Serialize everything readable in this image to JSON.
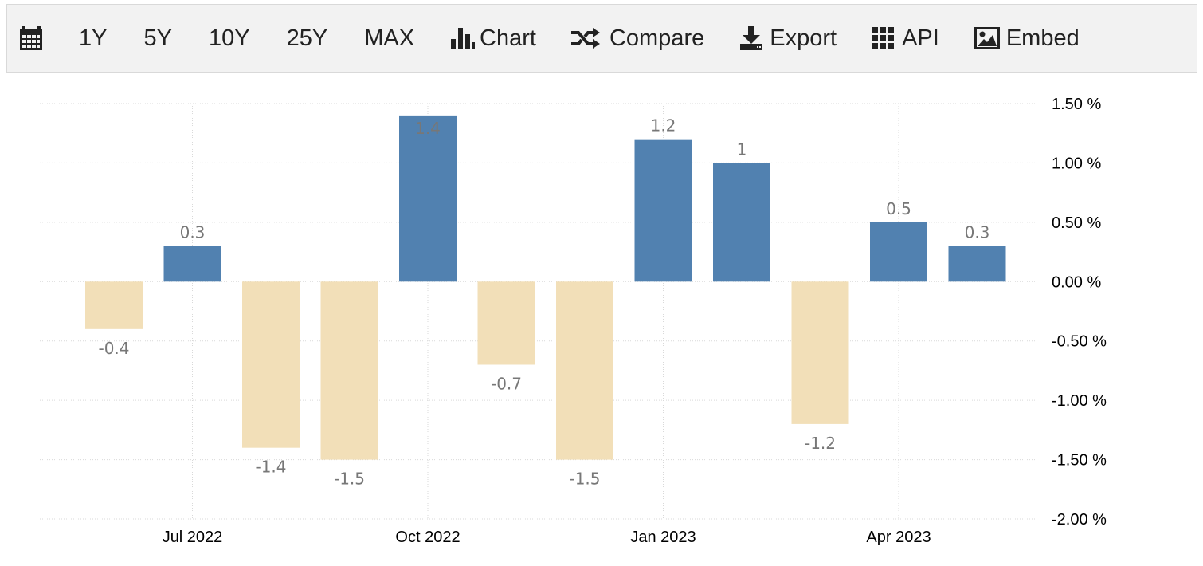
{
  "toolbar": {
    "calendar_icon": "calendar-icon",
    "buttons": [
      "1Y",
      "5Y",
      "10Y",
      "25Y",
      "MAX"
    ],
    "actions": [
      {
        "label": "Chart",
        "icon": "bar-chart-icon"
      },
      {
        "label": "Compare",
        "icon": "shuffle-icon"
      },
      {
        "label": "Export",
        "icon": "download-icon"
      },
      {
        "label": "API",
        "icon": "grid-icon"
      },
      {
        "label": "Embed",
        "icon": "image-icon"
      }
    ]
  },
  "chart_data": {
    "type": "bar",
    "categories": [
      "Jun 2022",
      "Jul 2022",
      "Aug 2022",
      "Sep 2022",
      "Oct 2022",
      "Nov 2022",
      "Dec 2022",
      "Jan 2023",
      "Feb 2023",
      "Mar 2023",
      "Apr 2023",
      "May 2023"
    ],
    "values": [
      -0.4,
      0.3,
      -1.4,
      -1.5,
      1.4,
      -0.7,
      -1.5,
      1.2,
      1,
      -1.2,
      0.5,
      0.3
    ],
    "data_labels": [
      "-0.4",
      "0.3",
      "-1.4",
      "-1.5",
      "1.4",
      "-0.7",
      "-1.5",
      "1.2",
      "1",
      "-1.2",
      "0.5",
      "0.3"
    ],
    "x_tick_labels": [
      "Jul 2022",
      "Oct 2022",
      "Jan 2023",
      "Apr 2023"
    ],
    "y_tick_labels": [
      "1.50 %",
      "1.00 %",
      "0.50 %",
      "0.00 %",
      "-0.50 %",
      "-1.00 %",
      "-1.50 %",
      "-2.00 %"
    ],
    "y_ticks": [
      1.5,
      1.0,
      0.5,
      0.0,
      -0.5,
      -1.0,
      -1.5,
      -2.0
    ],
    "ylim": [
      -2.0,
      1.5
    ],
    "y_axis_side": "right",
    "grid": true,
    "colors": {
      "positive": "#5181b0",
      "negative": "#f2dfb8",
      "label": "#777777",
      "grid": "#d9d9d9"
    }
  }
}
